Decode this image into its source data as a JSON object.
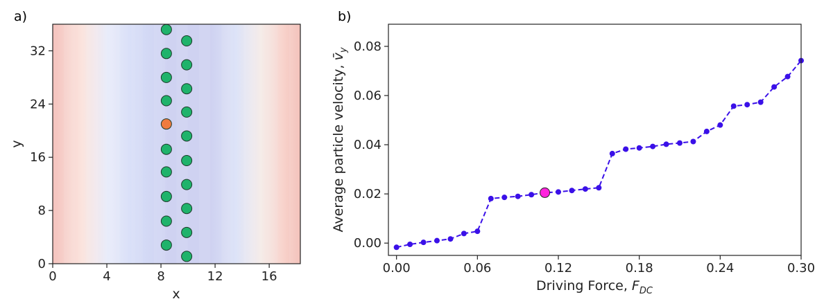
{
  "chart_data": [
    {
      "type": "scatter",
      "panel_label": "a)",
      "xlabel": "x",
      "ylabel": "y",
      "xlim": [
        0,
        18.3
      ],
      "ylim": [
        0,
        36
      ],
      "xticks": [
        "0",
        "4",
        "8",
        "12",
        "16"
      ],
      "yticks": [
        "0",
        "8",
        "16",
        "24",
        "32"
      ],
      "background": "periodic potential stripes (red at edges, blue in center)",
      "series": [
        {
          "color": "#1fb36b",
          "points": [
            [
              8.4,
              35.2
            ],
            [
              8.4,
              31.6
            ],
            [
              8.4,
              28.0
            ],
            [
              8.4,
              24.5
            ],
            [
              8.4,
              17.2
            ],
            [
              8.4,
              13.8
            ],
            [
              8.4,
              10.1
            ],
            [
              8.4,
              6.4
            ],
            [
              8.4,
              2.8
            ],
            [
              9.9,
              33.5
            ],
            [
              9.9,
              29.9
            ],
            [
              9.9,
              26.3
            ],
            [
              9.9,
              22.8
            ],
            [
              9.9,
              19.2
            ],
            [
              9.9,
              15.5
            ],
            [
              9.9,
              11.9
            ],
            [
              9.9,
              8.3
            ],
            [
              9.9,
              4.7
            ],
            [
              9.9,
              1.1
            ]
          ]
        },
        {
          "color": "#f07b3f",
          "points": [
            [
              8.4,
              21.0
            ]
          ]
        }
      ]
    },
    {
      "type": "line",
      "panel_label": "b)",
      "xlabel": "Driving Force, ",
      "xlabel_sym": "F",
      "xlabel_sub": "DC",
      "ylabel": "Average particle velocity, ",
      "ylabel_sym": "v̄",
      "ylabel_sub": "y",
      "xlim": [
        -0.006,
        0.3
      ],
      "ylim": [
        -0.005,
        0.089
      ],
      "xticks": [
        "0.00",
        "0.06",
        "0.12",
        "0.18",
        "0.24",
        "0.30"
      ],
      "yticks": [
        "0.00",
        "0.02",
        "0.04",
        "0.06",
        "0.08"
      ],
      "line_color": "#3a10e8",
      "highlight_color": "#ff22dd",
      "highlight_point": [
        0.11,
        0.0205
      ],
      "x": [
        0.0,
        0.01,
        0.02,
        0.03,
        0.04,
        0.05,
        0.06,
        0.07,
        0.08,
        0.09,
        0.1,
        0.11,
        0.12,
        0.13,
        0.14,
        0.15,
        0.16,
        0.17,
        0.18,
        0.19,
        0.2,
        0.21,
        0.22,
        0.23,
        0.24,
        0.25,
        0.26,
        0.27,
        0.28,
        0.29,
        0.3
      ],
      "y": [
        -0.0017,
        -0.0005,
        0.0003,
        0.001,
        0.0017,
        0.0039,
        0.0048,
        0.0181,
        0.0186,
        0.019,
        0.0197,
        0.0205,
        0.0208,
        0.0214,
        0.022,
        0.0225,
        0.0364,
        0.0382,
        0.0387,
        0.0393,
        0.0402,
        0.0407,
        0.0413,
        0.0454,
        0.048,
        0.0557,
        0.0563,
        0.0573,
        0.0635,
        0.0677,
        0.0742
      ]
    }
  ]
}
